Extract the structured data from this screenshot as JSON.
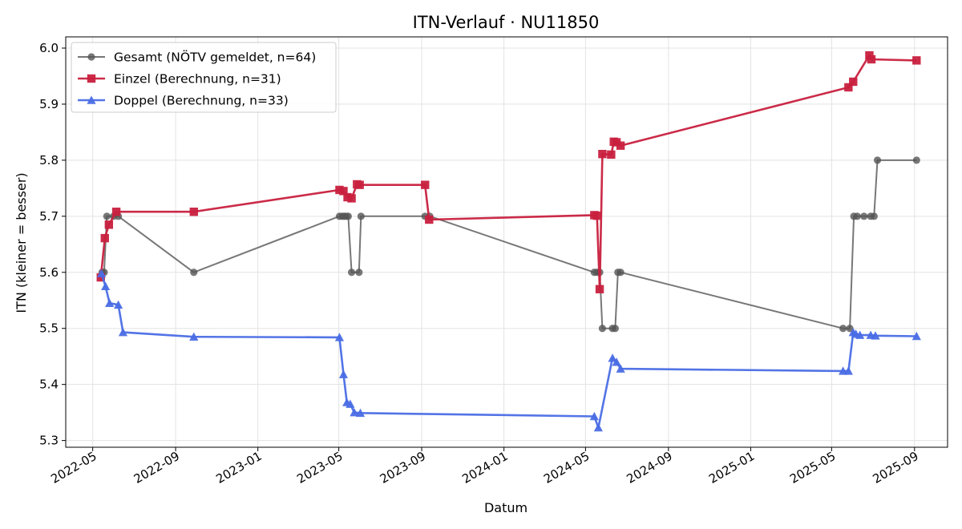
{
  "chart_data": {
    "type": "line",
    "title": "ITN-Verlauf · NU11850",
    "xlabel": "Datum",
    "ylabel": "ITN  (kleiner = besser)",
    "xlim": [
      "2022-03-22",
      "2025-10-20"
    ],
    "ylim": [
      5.288,
      6.02
    ],
    "grid": true,
    "legend_position": "top-left",
    "x_ticks": [
      "2022-05",
      "2022-09",
      "2023-01",
      "2023-05",
      "2023-09",
      "2024-01",
      "2024-05",
      "2024-09",
      "2025-01",
      "2025-05",
      "2025-09"
    ],
    "y_ticks": [
      "5.3",
      "5.4",
      "5.5",
      "5.6",
      "5.7",
      "5.8",
      "5.9",
      "6.0"
    ],
    "series": [
      {
        "name": "Gesamt (NÖTV gemeldet, n=64)",
        "color": "#555555",
        "marker": "circle",
        "points": [
          [
            "2022-05-15",
            5.6
          ],
          [
            "2022-05-18",
            5.6
          ],
          [
            "2022-05-22",
            5.7
          ],
          [
            "2022-06-01",
            5.7
          ],
          [
            "2022-06-08",
            5.7
          ],
          [
            "2022-09-28",
            5.6
          ],
          [
            "2023-05-02",
            5.7
          ],
          [
            "2023-05-06",
            5.7
          ],
          [
            "2023-05-09",
            5.7
          ],
          [
            "2023-05-12",
            5.7
          ],
          [
            "2023-05-15",
            5.7
          ],
          [
            "2023-05-20",
            5.6
          ],
          [
            "2023-05-31",
            5.6
          ],
          [
            "2023-06-03",
            5.7
          ],
          [
            "2023-09-06",
            5.7
          ],
          [
            "2023-09-13",
            5.7
          ],
          [
            "2024-05-14",
            5.6
          ],
          [
            "2024-05-18",
            5.6
          ],
          [
            "2024-05-22",
            5.6
          ],
          [
            "2024-05-26",
            5.5
          ],
          [
            "2024-06-10",
            5.5
          ],
          [
            "2024-06-14",
            5.5
          ],
          [
            "2024-06-18",
            5.6
          ],
          [
            "2024-06-22",
            5.6
          ],
          [
            "2025-05-18",
            5.5
          ],
          [
            "2025-05-28",
            5.5
          ],
          [
            "2025-06-03",
            5.7
          ],
          [
            "2025-06-08",
            5.7
          ],
          [
            "2025-06-18",
            5.7
          ],
          [
            "2025-06-28",
            5.7
          ],
          [
            "2025-07-03",
            5.7
          ],
          [
            "2025-07-08",
            5.8
          ],
          [
            "2025-09-04",
            5.8
          ]
        ]
      },
      {
        "name": "Einzel (Berechnung, n=31)",
        "color": "#c8203e",
        "marker": "square",
        "points": [
          [
            "2022-05-13",
            5.591
          ],
          [
            "2022-05-19",
            5.661
          ],
          [
            "2022-05-25",
            5.685
          ],
          [
            "2022-06-05",
            5.708
          ],
          [
            "2022-09-28",
            5.708
          ],
          [
            "2023-05-02",
            5.747
          ],
          [
            "2023-05-08",
            5.745
          ],
          [
            "2023-05-14",
            5.734
          ],
          [
            "2023-05-20",
            5.732
          ],
          [
            "2023-05-28",
            5.757
          ],
          [
            "2023-06-01",
            5.756
          ],
          [
            "2023-09-06",
            5.756
          ],
          [
            "2023-09-12",
            5.694
          ],
          [
            "2024-05-14",
            5.702
          ],
          [
            "2024-05-18",
            5.701
          ],
          [
            "2024-05-22",
            5.57
          ],
          [
            "2024-05-26",
            5.811
          ],
          [
            "2024-06-08",
            5.81
          ],
          [
            "2024-06-12",
            5.833
          ],
          [
            "2024-06-16",
            5.832
          ],
          [
            "2024-06-22",
            5.826
          ],
          [
            "2025-05-26",
            5.93
          ],
          [
            "2025-06-02",
            5.94
          ],
          [
            "2025-06-26",
            5.987
          ],
          [
            "2025-06-29",
            5.98
          ],
          [
            "2025-09-04",
            5.978
          ]
        ]
      },
      {
        "name": "Doppel (Berechnung, n=33)",
        "color": "#4a6de5",
        "marker": "triangle",
        "points": [
          [
            "2022-05-14",
            5.598
          ],
          [
            "2022-05-20",
            5.575
          ],
          [
            "2022-05-26",
            5.545
          ],
          [
            "2022-06-08",
            5.542
          ],
          [
            "2022-06-15",
            5.493
          ],
          [
            "2022-09-28",
            5.485
          ],
          [
            "2023-05-02",
            5.484
          ],
          [
            "2023-05-08",
            5.418
          ],
          [
            "2023-05-13",
            5.368
          ],
          [
            "2023-05-18",
            5.365
          ],
          [
            "2023-05-24",
            5.35
          ],
          [
            "2023-06-02",
            5.349
          ],
          [
            "2024-05-14",
            5.343
          ],
          [
            "2024-05-20",
            5.323
          ],
          [
            "2024-06-10",
            5.447
          ],
          [
            "2024-06-16",
            5.44
          ],
          [
            "2024-06-22",
            5.428
          ],
          [
            "2025-05-18",
            5.424
          ],
          [
            "2025-05-26",
            5.424
          ],
          [
            "2025-06-02",
            5.493
          ],
          [
            "2025-06-06",
            5.49
          ],
          [
            "2025-06-12",
            5.488
          ],
          [
            "2025-06-28",
            5.488
          ],
          [
            "2025-07-05",
            5.487
          ],
          [
            "2025-09-04",
            5.486
          ]
        ]
      }
    ]
  }
}
